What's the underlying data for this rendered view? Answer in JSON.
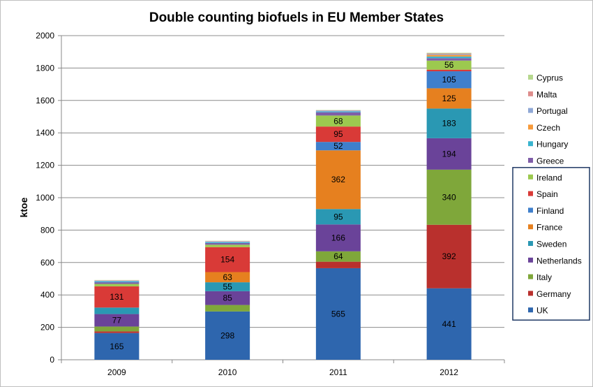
{
  "chart_data": {
    "type": "bar",
    "stacked": true,
    "title": "Double counting biofuels in EU Member States",
    "xlabel": "",
    "ylabel": "ktoe",
    "ylim": [
      0,
      2000
    ],
    "yticks": [
      0,
      200,
      400,
      600,
      800,
      1000,
      1200,
      1400,
      1600,
      1800,
      2000
    ],
    "grid": true,
    "legend_position": "right",
    "categories": [
      "2009",
      "2010",
      "2011",
      "2012"
    ],
    "series": [
      {
        "name": "UK",
        "color": "#2e66ae",
        "values": [
          165,
          298,
          565,
          441
        ],
        "labels": [
          "165",
          "298",
          "565",
          "441"
        ]
      },
      {
        "name": "Germany",
        "color": "#b9302d",
        "values": [
          10,
          0,
          40,
          392
        ],
        "labels": [
          "",
          "",
          "",
          "392"
        ]
      },
      {
        "name": "Italy",
        "color": "#7fa73a",
        "values": [
          30,
          40,
          64,
          340
        ],
        "labels": [
          "",
          "",
          "64",
          "340"
        ]
      },
      {
        "name": "Netherlands",
        "color": "#6a4399",
        "values": [
          77,
          85,
          166,
          194
        ],
        "labels": [
          "77",
          "85",
          "166",
          "194"
        ]
      },
      {
        "name": "Sweden",
        "color": "#2a98b3",
        "values": [
          40,
          55,
          95,
          183
        ],
        "labels": [
          "",
          "55",
          "95",
          "183"
        ]
      },
      {
        "name": "France",
        "color": "#e6801f",
        "values": [
          0,
          63,
          362,
          125
        ],
        "labels": [
          "",
          "63",
          "362",
          "125"
        ]
      },
      {
        "name": "Finland",
        "color": "#3f7fcc",
        "values": [
          0,
          0,
          52,
          105
        ],
        "labels": [
          "",
          "",
          "52",
          "105"
        ]
      },
      {
        "name": "Spain",
        "color": "#d93a37",
        "values": [
          131,
          154,
          95,
          10
        ],
        "labels": [
          "131",
          "154",
          "95",
          ""
        ]
      },
      {
        "name": "Ireland",
        "color": "#9cc94f",
        "values": [
          15,
          15,
          68,
          56
        ],
        "labels": [
          "",
          "",
          "68",
          "56"
        ]
      },
      {
        "name": "Greece",
        "color": "#7f5da8",
        "values": [
          10,
          10,
          20,
          15
        ],
        "labels": [
          "",
          "",
          "",
          ""
        ]
      },
      {
        "name": "Hungary",
        "color": "#39b4cf",
        "values": [
          5,
          5,
          5,
          10
        ],
        "labels": [
          "",
          "",
          "",
          ""
        ]
      },
      {
        "name": "Czech",
        "color": "#f79a3a",
        "values": [
          0,
          0,
          0,
          10
        ],
        "labels": [
          "",
          "",
          "",
          ""
        ]
      },
      {
        "name": "Portugal",
        "color": "#8fa8d6",
        "values": [
          5,
          5,
          5,
          5
        ],
        "labels": [
          "",
          "",
          "",
          ""
        ]
      },
      {
        "name": "Malta",
        "color": "#de8d8c",
        "values": [
          2,
          2,
          2,
          4
        ],
        "labels": [
          "",
          "",
          "",
          ""
        ]
      },
      {
        "name": "Cyprus",
        "color": "#b6d88e",
        "values": [
          2,
          2,
          2,
          4
        ],
        "labels": [
          "",
          "",
          "",
          ""
        ]
      }
    ],
    "legend_order": [
      "Cyprus",
      "Malta",
      "Portugal",
      "Czech",
      "Hungary",
      "Greece",
      "Ireland",
      "Spain",
      "Finland",
      "France",
      "Sweden",
      "Netherlands",
      "Italy",
      "Germany",
      "UK"
    ],
    "legend_highlighted": [
      "Ireland",
      "Spain",
      "Finland",
      "France",
      "Sweden",
      "Netherlands",
      "Italy",
      "Germany",
      "UK"
    ]
  }
}
